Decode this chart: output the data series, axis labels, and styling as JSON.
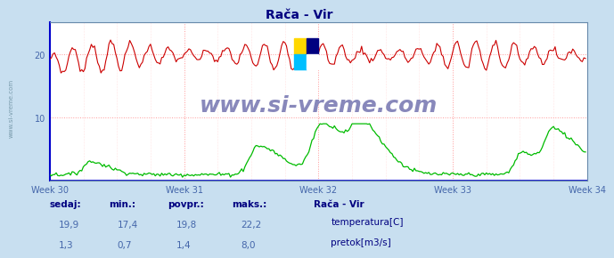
{
  "title": "Rača - Vir",
  "title_color": "#000080",
  "bg_color": "#c8dff0",
  "plot_bg_color": "#ffffff",
  "grid_color": "#ff9999",
  "grid_style": "dotted",
  "weeks": [
    "Week 30",
    "Week 31",
    "Week 32",
    "Week 33",
    "Week 34"
  ],
  "week_positions": [
    0,
    84,
    168,
    252,
    336
  ],
  "n_points": 336,
  "ylim": [
    0,
    25
  ],
  "yticks": [
    10,
    20
  ],
  "temp_color": "#cc0000",
  "flow_color": "#00bb00",
  "flow_base_color": "#0000cc",
  "watermark_text": "www.si-vreme.com",
  "watermark_color": "#8888bb",
  "watermark_fontsize": 18,
  "left_label": "www.si-vreme.com",
  "left_label_color": "#7799aa",
  "temp_min": 17.4,
  "temp_max": 22.2,
  "temp_mean": 19.8,
  "temp_current": 19.9,
  "flow_min": 0.7,
  "flow_max": 8.0,
  "flow_mean": 1.4,
  "flow_current": 1.3,
  "legend_title": "Rača - Vir",
  "legend_title_color": "#000080",
  "table_label_color": "#000080",
  "table_value_color": "#4466aa",
  "table_headers": [
    "sedaj:",
    "min.:",
    "povpr.:",
    "maks.:"
  ],
  "footer_bg": "#c8dff0",
  "spike_centers": [
    25,
    130,
    170,
    195,
    295,
    315
  ],
  "spike_heights": [
    2.0,
    4.5,
    8.0,
    5.5,
    3.5,
    6.5
  ],
  "spike_widths_rise": [
    4,
    5,
    6,
    5,
    4,
    5
  ],
  "spike_widths_fall": [
    12,
    15,
    20,
    15,
    12,
    18
  ]
}
